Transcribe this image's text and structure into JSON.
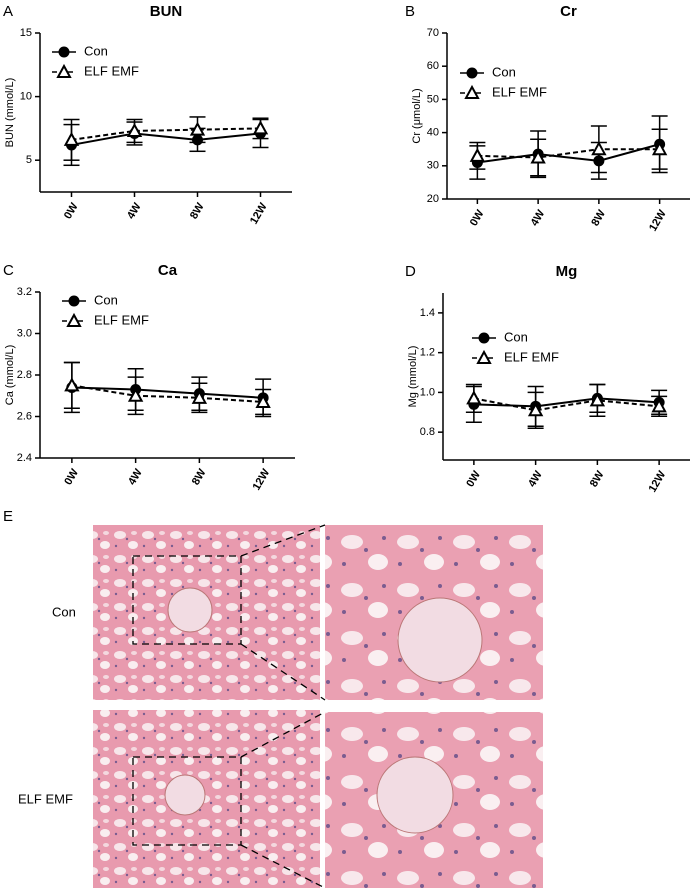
{
  "chart_data": [
    {
      "type": "line",
      "panel": "A",
      "title": "BUN",
      "y_label": "BUN (mmol/L)",
      "categories": [
        "0W",
        "4W",
        "8W",
        "12W"
      ],
      "series": [
        {
          "name": "Con",
          "color": "#000000",
          "marker": "circle",
          "line_style": "solid",
          "values": [
            6.2,
            7.1,
            6.6,
            7.1
          ],
          "errors": [
            1.6,
            0.9,
            0.9,
            1.1
          ]
        },
        {
          "name": "ELF EMF",
          "color": "#000000",
          "marker": "triangle",
          "line_style": "dashed",
          "values": [
            6.6,
            7.3,
            7.4,
            7.5
          ],
          "errors": [
            1.6,
            0.9,
            1.0,
            0.8
          ]
        }
      ],
      "ylim": [
        2.5,
        15
      ],
      "yticks": [
        5,
        10,
        15
      ]
    },
    {
      "type": "line",
      "panel": "B",
      "title": "Cr",
      "y_label": "Cr (μmol/L)",
      "categories": [
        "0W",
        "4W",
        "8W",
        "12W"
      ],
      "series": [
        {
          "name": "Con",
          "color": "#000000",
          "marker": "circle",
          "line_style": "solid",
          "values": [
            31,
            33.5,
            31.5,
            36.5
          ],
          "errors": [
            5,
            7,
            5.5,
            8.5
          ]
        },
        {
          "name": "ELF EMF",
          "color": "#000000",
          "marker": "triangle",
          "line_style": "dashed",
          "values": [
            33,
            32.5,
            35,
            35
          ],
          "errors": [
            4,
            5.5,
            7,
            6
          ]
        }
      ],
      "ylim": [
        20,
        70
      ],
      "yticks": [
        20,
        30,
        40,
        50,
        60,
        70
      ]
    },
    {
      "type": "line",
      "panel": "C",
      "title": "Ca",
      "y_label": "Ca (mmol/L)",
      "categories": [
        "0W",
        "4W",
        "8W",
        "12W"
      ],
      "series": [
        {
          "name": "Con",
          "color": "#000000",
          "marker": "circle",
          "line_style": "solid",
          "values": [
            2.74,
            2.73,
            2.71,
            2.69
          ],
          "errors": [
            0.12,
            0.1,
            0.08,
            0.09
          ]
        },
        {
          "name": "ELF EMF",
          "color": "#000000",
          "marker": "triangle",
          "line_style": "dashed",
          "values": [
            2.75,
            2.7,
            2.69,
            2.67
          ],
          "errors": [
            0.11,
            0.09,
            0.07,
            0.06
          ]
        }
      ],
      "ylim": [
        2.4,
        3.2
      ],
      "yticks": [
        2.4,
        2.6,
        2.8,
        {
          "value": 3,
          "label": "3.0"
        },
        3.2
      ]
    },
    {
      "type": "line",
      "panel": "D",
      "title": "Mg",
      "y_label": "Mg (mmol/L)",
      "categories": [
        "0W",
        "4W",
        "8W",
        "12W"
      ],
      "series": [
        {
          "name": "Con",
          "color": "#000000",
          "marker": "circle",
          "line_style": "solid",
          "values": [
            0.94,
            0.93,
            0.97,
            0.95
          ],
          "errors": [
            0.09,
            0.1,
            0.07,
            0.06
          ]
        },
        {
          "name": "ELF EMF",
          "color": "#000000",
          "marker": "triangle",
          "line_style": "dashed",
          "values": [
            0.97,
            0.91,
            0.96,
            0.93
          ],
          "errors": [
            0.07,
            0.09,
            0.08,
            0.05
          ]
        }
      ],
      "ylim": [
        0.66,
        1.5
      ],
      "yticks": [
        0.8,
        {
          "value": 1,
          "label": "1.0"
        },
        1.2,
        1.4
      ]
    }
  ],
  "histology": {
    "panel": "E",
    "rows": [
      "Con",
      "ELF EMF"
    ]
  }
}
